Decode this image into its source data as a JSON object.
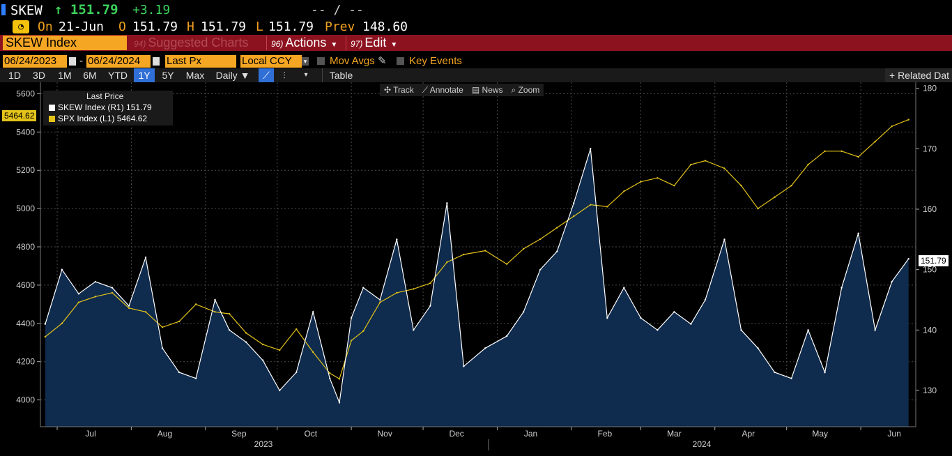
{
  "header": {
    "ticker": "SKEW",
    "last_price": "↑ 151.79",
    "change": "+3.19",
    "bid_ask": "-- / --"
  },
  "quote": {
    "on_label": "On",
    "date": "21-Jun",
    "open_label": "O",
    "open": "151.79",
    "high_label": "H",
    "high": "151.79",
    "low_label": "L",
    "low": "151.79",
    "prev_label": "Prev",
    "prev": "148.60"
  },
  "toolbar": {
    "security": "SKEW Index",
    "suggested_num": "94)",
    "suggested": "Suggested Charts",
    "actions_num": "96)",
    "actions": "Actions",
    "edit_num": "97)",
    "edit": "Edit"
  },
  "range": {
    "start": "06/24/2023",
    "dash": "-",
    "end": "06/24/2024",
    "field": "Last Px",
    "currency": "Local CCY",
    "mov_avgs": "Mov Avgs",
    "key_events": "Key Events"
  },
  "periods": [
    "1D",
    "3D",
    "1M",
    "6M",
    "YTD",
    "1Y",
    "5Y",
    "Max"
  ],
  "active_period": "1Y",
  "frequency": "Daily ▼",
  "table_label": "Table",
  "related": "+ Related Dat",
  "tools": {
    "track": "✣ Track",
    "annotate": "⟋ Annotate",
    "news": "▤ News",
    "zoom": "⌕ Zoom"
  },
  "legend": {
    "title": "Last Price",
    "skew": "SKEW Index  (R1)   151.79",
    "spx": "SPX Index  (L1)    5464.62"
  },
  "flags": {
    "left": "5464.62",
    "right": "151.79"
  },
  "colors": {
    "skew_line": "#ffffff",
    "skew_fill": "#0f2b4d",
    "spx_line": "#e3c31a",
    "toolbar_red": "#8d1220",
    "orange": "#f5a623",
    "active_blue": "#2f6fd6"
  },
  "chart_data": {
    "type": "line",
    "title": "",
    "x_start": "2023-06-24",
    "x_end": "2024-06-24",
    "month_labels": [
      "Jul",
      "Aug",
      "Sep",
      "Oct",
      "Nov",
      "Dec",
      "Jan",
      "Feb",
      "Mar",
      "Apr",
      "May",
      "Jun"
    ],
    "year_labels": [
      "2023",
      "2024"
    ],
    "left_axis": {
      "series": "SPX Index",
      "ylim": [
        3860,
        5660
      ],
      "ticks": [
        4000,
        4200,
        4400,
        4600,
        4800,
        5000,
        5200,
        5400,
        5600
      ]
    },
    "right_axis": {
      "series": "SKEW Index",
      "ylim": [
        124,
        181
      ],
      "ticks": [
        130,
        140,
        150,
        160,
        170,
        180
      ]
    },
    "series": [
      {
        "name": "SPX Index",
        "axis": "left",
        "x": [
          "2023-06-26",
          "2023-07-03",
          "2023-07-10",
          "2023-07-17",
          "2023-07-24",
          "2023-07-31",
          "2023-08-07",
          "2023-08-14",
          "2023-08-21",
          "2023-08-28",
          "2023-09-05",
          "2023-09-11",
          "2023-09-18",
          "2023-09-25",
          "2023-10-02",
          "2023-10-09",
          "2023-10-16",
          "2023-10-23",
          "2023-10-27",
          "2023-11-01",
          "2023-11-06",
          "2023-11-13",
          "2023-11-20",
          "2023-11-27",
          "2023-12-04",
          "2023-12-11",
          "2023-12-18",
          "2023-12-27",
          "2024-01-05",
          "2024-01-12",
          "2024-01-19",
          "2024-01-26",
          "2024-02-02",
          "2024-02-09",
          "2024-02-16",
          "2024-02-23",
          "2024-03-01",
          "2024-03-08",
          "2024-03-15",
          "2024-03-22",
          "2024-03-28",
          "2024-04-05",
          "2024-04-12",
          "2024-04-19",
          "2024-04-26",
          "2024-05-03",
          "2024-05-10",
          "2024-05-17",
          "2024-05-24",
          "2024-05-31",
          "2024-06-07",
          "2024-06-14",
          "2024-06-21"
        ],
        "y": [
          4330,
          4400,
          4510,
          4540,
          4560,
          4480,
          4460,
          4380,
          4410,
          4500,
          4460,
          4450,
          4350,
          4290,
          4260,
          4370,
          4250,
          4140,
          4110,
          4310,
          4360,
          4510,
          4560,
          4580,
          4610,
          4720,
          4760,
          4780,
          4710,
          4790,
          4840,
          4900,
          4960,
          5020,
          5010,
          5090,
          5140,
          5160,
          5120,
          5230,
          5250,
          5210,
          5120,
          5000,
          5060,
          5120,
          5230,
          5300,
          5300,
          5270,
          5350,
          5430,
          5464.62
        ]
      },
      {
        "name": "SKEW Index",
        "axis": "right",
        "x": [
          "2023-06-26",
          "2023-07-03",
          "2023-07-10",
          "2023-07-17",
          "2023-07-24",
          "2023-07-31",
          "2023-08-07",
          "2023-08-14",
          "2023-08-21",
          "2023-08-28",
          "2023-09-05",
          "2023-09-11",
          "2023-09-18",
          "2023-09-25",
          "2023-10-02",
          "2023-10-09",
          "2023-10-16",
          "2023-10-23",
          "2023-10-27",
          "2023-11-01",
          "2023-11-06",
          "2023-11-13",
          "2023-11-20",
          "2023-11-27",
          "2023-12-04",
          "2023-12-11",
          "2023-12-18",
          "2023-12-27",
          "2024-01-05",
          "2024-01-12",
          "2024-01-19",
          "2024-01-26",
          "2024-02-02",
          "2024-02-09",
          "2024-02-16",
          "2024-02-23",
          "2024-03-01",
          "2024-03-08",
          "2024-03-15",
          "2024-03-22",
          "2024-03-28",
          "2024-04-05",
          "2024-04-12",
          "2024-04-19",
          "2024-04-26",
          "2024-05-03",
          "2024-05-10",
          "2024-05-17",
          "2024-05-24",
          "2024-05-31",
          "2024-06-07",
          "2024-06-14",
          "2024-06-21"
        ],
        "y": [
          141,
          150,
          146,
          148,
          147,
          144,
          152,
          137,
          133,
          132,
          145,
          140,
          138,
          135,
          130,
          133,
          143,
          132,
          128,
          142,
          147,
          145,
          155,
          140,
          144,
          161,
          134,
          137,
          139,
          143,
          150,
          153,
          161,
          170,
          142,
          147,
          142,
          140,
          143,
          141,
          145,
          155,
          140,
          137,
          133,
          132,
          140,
          133,
          147,
          156,
          140,
          148,
          151.79
        ]
      }
    ]
  }
}
